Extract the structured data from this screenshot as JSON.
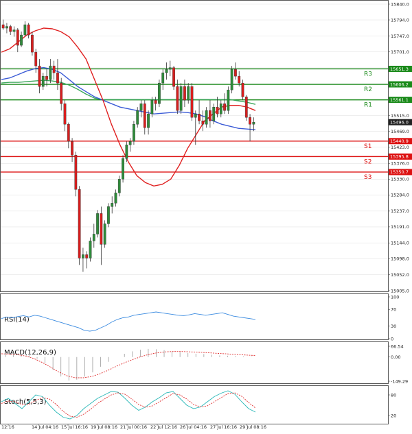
{
  "chart_data": [
    {
      "type": "candlestick",
      "ylim": [
        15005,
        15840
      ],
      "y_ticks": [
        "15840.0",
        "15794.0",
        "15747.0",
        "15701.0",
        "15654.0",
        "15608.0",
        "15561.0",
        "15515.0",
        "15469.0",
        "15423.0",
        "15376.0",
        "15330.0",
        "15284.0",
        "15237.0",
        "15191.0",
        "15144.0",
        "15098.0",
        "15052.0",
        "15005.0"
      ],
      "x_ticks": [
        "12:16",
        "14 Jul 04:16",
        "15 Jul 16:16",
        "19 Jul 08:16",
        "21 Jul 00:16",
        "22 Jul 12:16",
        "26 Jul 04:16",
        "27 Jul 16:16",
        "29 Jul 08:16"
      ],
      "current_price": "15496.0",
      "levels": [
        {
          "name": "R3",
          "value": 15651.3,
          "tag": "15651.3",
          "color": "#1a8a1a"
        },
        {
          "name": "R2",
          "value": 15606.2,
          "tag": "15606.2",
          "color": "#1a8a1a"
        },
        {
          "name": "R1",
          "value": 15561.1,
          "tag": "15561.1",
          "color": "#1a8a1a"
        },
        {
          "name": "S1",
          "value": 15440.9,
          "tag": "15440.9",
          "color": "#dd1111"
        },
        {
          "name": "S2",
          "value": 15395.8,
          "tag": "15395.8",
          "color": "#dd1111"
        },
        {
          "name": "S3",
          "value": 15350.7,
          "tag": "15350.7",
          "color": "#dd1111"
        }
      ],
      "candles": [
        [
          15780,
          15795,
          15765,
          15770
        ],
        [
          15770,
          15785,
          15755,
          15775
        ],
        [
          15775,
          15780,
          15750,
          15760
        ],
        [
          15760,
          15775,
          15745,
          15765
        ],
        [
          15765,
          15770,
          15700,
          15720
        ],
        [
          15720,
          15760,
          15715,
          15750
        ],
        [
          15750,
          15790,
          15745,
          15780
        ],
        [
          15780,
          15785,
          15740,
          15750
        ],
        [
          15750,
          15760,
          15690,
          15700
        ],
        [
          15700,
          15710,
          15640,
          15660
        ],
        [
          15660,
          15680,
          15580,
          15600
        ],
        [
          15600,
          15640,
          15590,
          15630
        ],
        [
          15630,
          15650,
          15600,
          15620
        ],
        [
          15620,
          15680,
          15610,
          15660
        ],
        [
          15660,
          15675,
          15620,
          15640
        ],
        [
          15640,
          15680,
          15590,
          15610
        ],
        [
          15610,
          15625,
          15530,
          15550
        ],
        [
          15550,
          15560,
          15470,
          15490
        ],
        [
          15490,
          15495,
          15420,
          15440
        ],
        [
          15440,
          15450,
          15380,
          15400
        ],
        [
          15400,
          15410,
          15280,
          15300
        ],
        [
          15300,
          15310,
          15080,
          15100
        ],
        [
          15100,
          15130,
          15060,
          15110
        ],
        [
          15110,
          15120,
          15070,
          15100
        ],
        [
          15100,
          15160,
          15090,
          15150
        ],
        [
          15150,
          15200,
          15130,
          15170
        ],
        [
          15170,
          15240,
          15160,
          15230
        ],
        [
          15230,
          15250,
          15080,
          15140
        ],
        [
          15140,
          15210,
          15130,
          15200
        ],
        [
          15200,
          15260,
          15190,
          15250
        ],
        [
          15250,
          15280,
          15230,
          15260
        ],
        [
          15260,
          15300,
          15250,
          15290
        ],
        [
          15290,
          15340,
          15280,
          15330
        ],
        [
          15330,
          15400,
          15320,
          15390
        ],
        [
          15390,
          15440,
          15380,
          15430
        ],
        [
          15430,
          15450,
          15410,
          15440
        ],
        [
          15440,
          15500,
          15430,
          15490
        ],
        [
          15490,
          15540,
          15480,
          15530
        ],
        [
          15530,
          15560,
          15510,
          15550
        ],
        [
          15550,
          15560,
          15460,
          15480
        ],
        [
          15480,
          15530,
          15460,
          15520
        ],
        [
          15520,
          15570,
          15510,
          15560
        ],
        [
          15560,
          15570,
          15530,
          15550
        ],
        [
          15550,
          15620,
          15540,
          15610
        ],
        [
          15610,
          15650,
          15590,
          15640
        ],
        [
          15640,
          15670,
          15620,
          15650
        ],
        [
          15650,
          15675,
          15630,
          15655
        ],
        [
          15655,
          15660,
          15590,
          15600
        ],
        [
          15600,
          15620,
          15520,
          15530
        ],
        [
          15530,
          15610,
          15520,
          15600
        ],
        [
          15600,
          15620,
          15540,
          15560
        ],
        [
          15560,
          15610,
          15550,
          15600
        ],
        [
          15600,
          15610,
          15500,
          15510
        ],
        [
          15510,
          15530,
          15430,
          15520
        ],
        [
          15520,
          15560,
          15490,
          15500
        ],
        [
          15500,
          15530,
          15470,
          15490
        ],
        [
          15490,
          15540,
          15480,
          15530
        ],
        [
          15530,
          15560,
          15480,
          15500
        ],
        [
          15500,
          15550,
          15490,
          15540
        ],
        [
          15540,
          15570,
          15510,
          15520
        ],
        [
          15520,
          15560,
          15510,
          15550
        ],
        [
          15550,
          15580,
          15520,
          15530
        ],
        [
          15530,
          15600,
          15520,
          15590
        ],
        [
          15590,
          15660,
          15580,
          15650
        ],
        [
          15650,
          15670,
          15620,
          15630
        ],
        [
          15630,
          15645,
          15600,
          15610
        ],
        [
          15610,
          15620,
          15560,
          15570
        ],
        [
          15570,
          15575,
          15500,
          15510
        ],
        [
          15510,
          15520,
          15440,
          15490
        ],
        [
          15490,
          15510,
          15470,
          15496
        ]
      ],
      "ma_red": [
        15700,
        15710,
        15730,
        15750,
        15762,
        15770,
        15768,
        15760,
        15745,
        15715,
        15680,
        15620,
        15560,
        15490,
        15430,
        15380,
        15340,
        15320,
        15310,
        15315,
        15330,
        15370,
        15420,
        15460,
        15500,
        15520,
        15540,
        15545,
        15545,
        15540,
        15530
      ],
      "ma_green": [
        15610,
        15612,
        15612,
        15614,
        15616,
        15618,
        15616,
        15612,
        15604,
        15592,
        15578,
        15566,
        15562,
        15562,
        15562,
        15562,
        15562,
        15562,
        15562,
        15562,
        15562,
        15562,
        15562,
        15562,
        15562,
        15562,
        15562,
        15562,
        15558,
        15554,
        15548
      ],
      "ma_blue": [
        15620,
        15625,
        15635,
        15645,
        15652,
        15655,
        15650,
        15640,
        15620,
        15600,
        15585,
        15570,
        15560,
        15550,
        15540,
        15535,
        15530,
        15525,
        15520,
        15522,
        15524,
        15526,
        15524,
        15520,
        15512,
        15500,
        15490,
        15484,
        15478,
        15476,
        15474
      ]
    },
    {
      "type": "line",
      "title": "RSI(14)",
      "ylim": [
        0,
        100
      ],
      "y_ticks": [
        "100",
        "70",
        "30",
        "0"
      ],
      "values": [
        48,
        52,
        50,
        53,
        55,
        52,
        56,
        54,
        50,
        46,
        42,
        38,
        34,
        30,
        26,
        20,
        18,
        20,
        26,
        32,
        40,
        46,
        50,
        52,
        56,
        58,
        60,
        62,
        64,
        62,
        60,
        58,
        56,
        55,
        57,
        60,
        58,
        56,
        58,
        60,
        62,
        58,
        54,
        52,
        50,
        48,
        46
      ]
    },
    {
      "type": "bar",
      "title": "MACD(12,26,9)",
      "ylim": [
        -149.29,
        66.54
      ],
      "y_ticks": [
        "66.54",
        "0.00",
        "-149.29"
      ],
      "values": [
        30,
        28,
        20,
        10,
        -10,
        -40,
        -80,
        -120,
        -145,
        -140,
        -120,
        -95,
        -60,
        -30,
        0,
        20,
        35,
        45,
        50,
        48,
        42,
        36,
        30,
        24,
        20,
        18,
        14,
        10,
        8,
        6,
        4,
        2
      ],
      "signal": [
        20,
        18,
        14,
        6,
        -10,
        -34,
        -62,
        -92,
        -116,
        -128,
        -128,
        -120,
        -104,
        -82,
        -58,
        -36,
        -16,
        2,
        16,
        26,
        32,
        34,
        34,
        32,
        30,
        27,
        24,
        21,
        18,
        15,
        12,
        9
      ]
    },
    {
      "type": "line",
      "title": "Stoch(5,5,3)",
      "ylim": [
        0,
        100
      ],
      "y_ticks": [
        "80",
        "20"
      ],
      "k": [
        60,
        70,
        55,
        40,
        60,
        80,
        75,
        50,
        30,
        15,
        10,
        20,
        40,
        55,
        70,
        80,
        90,
        88,
        70,
        50,
        35,
        45,
        60,
        72,
        86,
        90,
        70,
        50,
        40,
        45,
        60,
        75,
        85,
        92,
        82,
        60,
        40,
        30
      ],
      "d": [
        55,
        62,
        60,
        52,
        52,
        64,
        72,
        68,
        52,
        32,
        18,
        15,
        24,
        38,
        55,
        68,
        80,
        86,
        82,
        68,
        52,
        44,
        48,
        60,
        72,
        84,
        80,
        68,
        52,
        45,
        48,
        60,
        72,
        84,
        86,
        76,
        58,
        42
      ]
    }
  ]
}
